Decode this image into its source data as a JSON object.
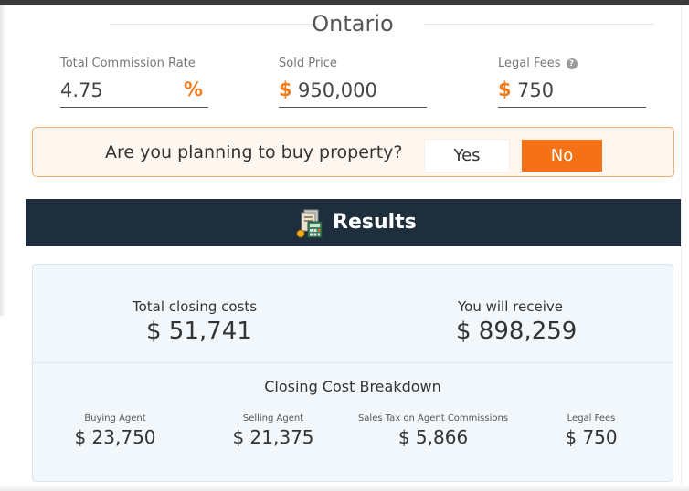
{
  "province": "Ontario",
  "fields": {
    "commission": {
      "label": "Total Commission Rate",
      "value": "4.75",
      "suffix": "%"
    },
    "sold_price": {
      "label": "Sold Price",
      "prefix": "$",
      "value": "950,000"
    },
    "legal_fees": {
      "label": "Legal Fees",
      "prefix": "$",
      "value": "750",
      "info_icon": "info-icon"
    }
  },
  "buy_question": {
    "text": "Are you planning to buy property?",
    "yes_label": "Yes",
    "no_label": "No",
    "selected": "No"
  },
  "results": {
    "title": "Results",
    "icon": "calculator-documents-icon",
    "total_closing_label": "Total closing costs",
    "total_closing_value": "$ 51,741",
    "receive_label": "You will receive",
    "receive_value": "$ 898,259",
    "breakdown_title": "Closing Cost Breakdown",
    "breakdown": [
      {
        "label": "Buying Agent",
        "value": "$ 23,750"
      },
      {
        "label": "Selling Agent",
        "value": "$ 21,375"
      },
      {
        "label": "Sales Tax on Agent Commissions",
        "value": "$ 5,866"
      },
      {
        "label": "Legal Fees",
        "value": "$ 750"
      }
    ]
  },
  "colors": {
    "accent": "#f57115",
    "header_bg": "#1e2e3d",
    "results_bg": "#f2f7fb"
  }
}
